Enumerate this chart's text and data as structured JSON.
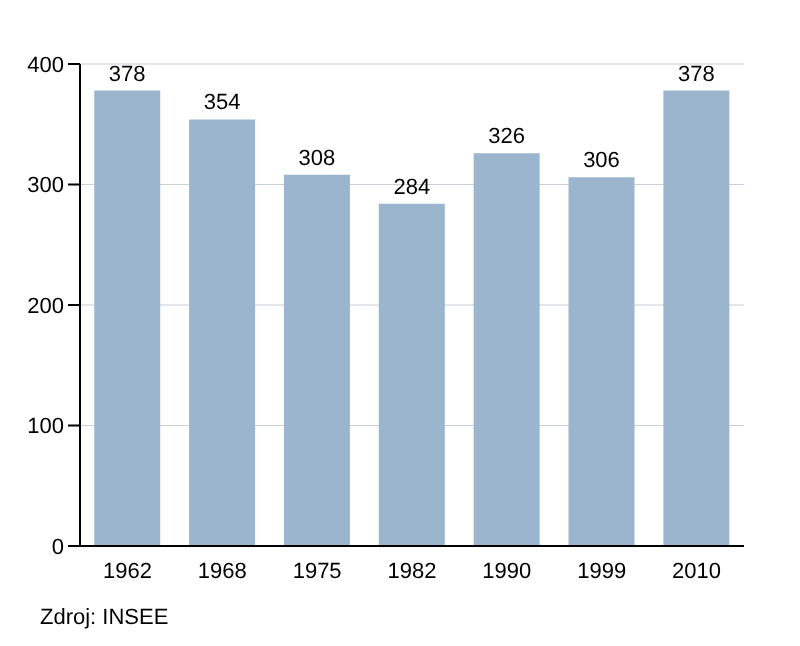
{
  "chart_data": {
    "type": "bar",
    "categories": [
      "1962",
      "1968",
      "1975",
      "1982",
      "1990",
      "1999",
      "2010"
    ],
    "values": [
      378,
      354,
      308,
      284,
      326,
      306,
      378
    ],
    "color": "#9cb5cf",
    "ylim": [
      0,
      400
    ],
    "yticks": [
      0,
      100,
      200,
      300,
      400
    ],
    "grid": "y",
    "data_labels": true,
    "annotations": [
      "Zdroj: INSEE"
    ]
  }
}
